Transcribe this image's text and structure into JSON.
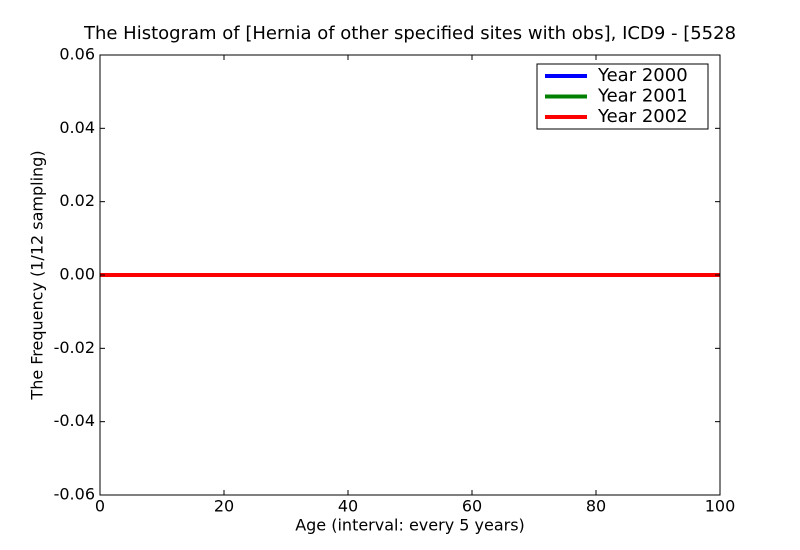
{
  "chart_data": {
    "type": "line",
    "title": "The Histogram of [Hernia of other specified sites with obs], ICD9 - [5528",
    "x_label": "Age (interval: every 5 years)",
    "y_label": "The Frequency (1/12 sampling)",
    "x": [
      0,
      5,
      10,
      15,
      20,
      25,
      30,
      35,
      40,
      45,
      50,
      55,
      60,
      65,
      70,
      75,
      80,
      85,
      90,
      95,
      100
    ],
    "series": [
      {
        "name": "Year 2000",
        "color": "#0000ff",
        "values": [
          0,
          0,
          0,
          0,
          0,
          0,
          0,
          0,
          0,
          0,
          0,
          0,
          0,
          0,
          0,
          0,
          0,
          0,
          0,
          0,
          0
        ]
      },
      {
        "name": "Year 2001",
        "color": "#008000",
        "values": [
          0,
          0,
          0,
          0,
          0,
          0,
          0,
          0,
          0,
          0,
          0,
          0,
          0,
          0,
          0,
          0,
          0,
          0,
          0,
          0,
          0
        ]
      },
      {
        "name": "Year 2002",
        "color": "#ff0000",
        "values": [
          0,
          0,
          0,
          0,
          0,
          0,
          0,
          0,
          0,
          0,
          0,
          0,
          0,
          0,
          0,
          0,
          0,
          0,
          0,
          0,
          0
        ]
      }
    ],
    "xlim": [
      0,
      100
    ],
    "xticks": [
      0,
      20,
      40,
      60,
      80,
      100
    ],
    "ylim": [
      -0.06,
      0.06
    ],
    "yticks": [
      -0.06,
      -0.04,
      -0.02,
      {
        "value": 0,
        "label": "0.00"
      },
      0.02,
      0.04,
      0.06
    ],
    "legend": "upper right"
  }
}
